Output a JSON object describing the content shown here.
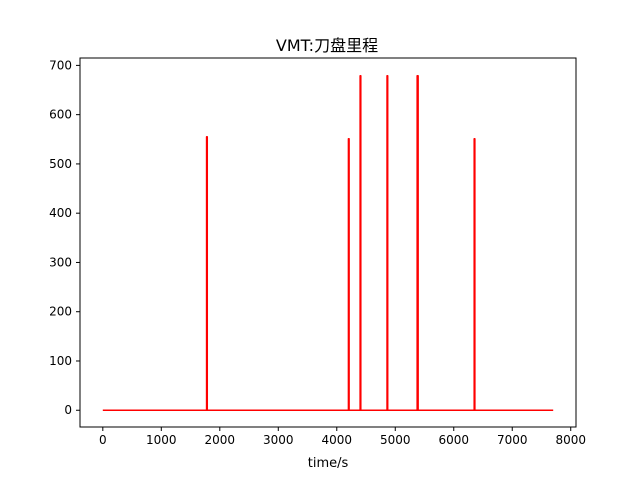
{
  "chart_data": {
    "type": "line",
    "title": "VMT:刀盘里程",
    "xlabel": "time/s",
    "ylabel": "",
    "xlim": [
      -390,
      8090
    ],
    "ylim": [
      -34,
      715
    ],
    "x_ticks": [
      0,
      1000,
      2000,
      3000,
      4000,
      5000,
      6000,
      7000,
      8000
    ],
    "y_ticks": [
      0,
      100,
      200,
      300,
      400,
      500,
      600,
      700
    ],
    "grid": false,
    "legend": "none",
    "series": [
      {
        "color": "#ff0000",
        "points": [
          [
            0,
            0
          ],
          [
            1775,
            0
          ],
          [
            1775,
            555
          ],
          [
            1785,
            555
          ],
          [
            1785,
            0
          ],
          [
            4200,
            0
          ],
          [
            4200,
            551
          ],
          [
            4210,
            551
          ],
          [
            4210,
            0
          ],
          [
            4400,
            0
          ],
          [
            4400,
            679
          ],
          [
            4410,
            679
          ],
          [
            4410,
            0
          ],
          [
            4860,
            0
          ],
          [
            4860,
            679
          ],
          [
            4870,
            679
          ],
          [
            4870,
            0
          ],
          [
            5375,
            0
          ],
          [
            5375,
            679
          ],
          [
            5390,
            679
          ],
          [
            5390,
            0
          ],
          [
            6350,
            0
          ],
          [
            6350,
            551
          ],
          [
            6360,
            551
          ],
          [
            6360,
            0
          ],
          [
            7700,
            0
          ]
        ]
      }
    ]
  }
}
